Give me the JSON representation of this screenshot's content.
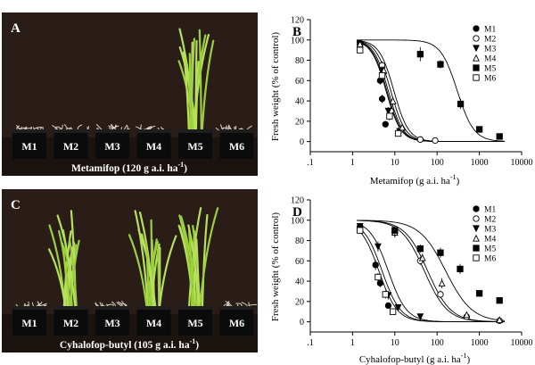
{
  "photo_panels": [
    {
      "letter": "A",
      "pots": [
        "M1",
        "M2",
        "M3",
        "M4",
        "M5",
        "M6"
      ],
      "caption_prefix": "Metamifop (120 g a.i. ha",
      "caption_sup": "-1",
      "caption_suffix": ")",
      "growth": [
        0.05,
        0.04,
        0.04,
        0.06,
        0.95,
        0.05
      ]
    },
    {
      "letter": "C",
      "pots": [
        "M1",
        "M2",
        "M3",
        "M4",
        "M5",
        "M6"
      ],
      "caption_prefix": "Cyhalofop-butyl (105 g a.i. ha",
      "caption_sup": "-1",
      "caption_suffix": ")",
      "growth": [
        0.05,
        0.85,
        0.06,
        0.85,
        0.9,
        0.1
      ]
    }
  ],
  "chart_data": [
    {
      "type": "scatter",
      "panel": "B",
      "xlabel_prefix": "Metamifop (g a.i. ha",
      "xlabel_sup": "-1",
      "xlabel_suffix": ")",
      "ylabel": "Fresh weight (% of control)",
      "xscale": "log",
      "xlim": [
        0.1,
        10000
      ],
      "ylim": [
        -10,
        120
      ],
      "xticks": [
        ".1",
        "1",
        "10",
        "100",
        "1000",
        "10000"
      ],
      "yticks": [
        0,
        20,
        40,
        60,
        80,
        100,
        120
      ],
      "legend_position": "top-right",
      "series": [
        {
          "name": "M1",
          "marker": "circle-filled",
          "ec50": 6.2,
          "slope": 2.5,
          "x": [
            1.5,
            4.5,
            5,
            6,
            12,
            40
          ],
          "y": [
            97,
            60,
            42,
            17,
            8,
            2
          ],
          "err": [
            3,
            4,
            4,
            3,
            2,
            1
          ]
        },
        {
          "name": "M2",
          "marker": "circle-open",
          "ec50": 8,
          "slope": 2.5,
          "x": [
            1.5,
            5,
            8,
            14,
            40,
            90
          ],
          "y": [
            95,
            75,
            30,
            12,
            2,
            1
          ],
          "err": [
            3,
            4,
            4,
            3,
            1,
            1
          ]
        },
        {
          "name": "M3",
          "marker": "triangle-down-filled",
          "ec50": 7,
          "slope": 2.5,
          "x": [
            1.5,
            5,
            7,
            13
          ],
          "y": [
            93,
            70,
            30,
            10
          ],
          "err": [
            3,
            4,
            4,
            3
          ]
        },
        {
          "name": "M4",
          "marker": "triangle-up-open",
          "ec50": 9.5,
          "slope": 2.5,
          "x": [
            1.5,
            5.5,
            9,
            15
          ],
          "y": [
            96,
            70,
            40,
            14
          ],
          "err": [
            3,
            4,
            4,
            3
          ]
        },
        {
          "name": "M5",
          "marker": "square-filled",
          "ec50": 300,
          "slope": 2.2,
          "x": [
            40,
            120,
            360,
            1000,
            3000
          ],
          "y": [
            86,
            76,
            37,
            12,
            5
          ],
          "err": [
            7,
            4,
            5,
            2,
            1
          ]
        },
        {
          "name": "M6",
          "marker": "square-open",
          "ec50": 6.5,
          "slope": 2.5,
          "x": [
            1.5,
            5,
            7.5,
            12
          ],
          "y": [
            90,
            65,
            25,
            8
          ],
          "err": [
            3,
            4,
            4,
            3
          ]
        }
      ]
    },
    {
      "type": "scatter",
      "panel": "D",
      "xlabel_prefix": "Cyhalofop-butyl (g a.i. ha",
      "xlabel_sup": "-1",
      "xlabel_suffix": ")",
      "ylabel": "Fresh weight (% of control)",
      "xscale": "log",
      "xlim": [
        0.1,
        10000
      ],
      "ylim": [
        -10,
        120
      ],
      "xticks": [
        ".1",
        "1",
        "10",
        "100",
        "1000",
        "10000"
      ],
      "yticks": [
        0,
        20,
        40,
        60,
        80,
        100,
        120
      ],
      "legend_position": "top-right",
      "series": [
        {
          "name": "M1",
          "marker": "circle-filled",
          "ec50": 4.2,
          "slope": 2,
          "x": [
            1.5,
            3.5,
            4.5,
            7
          ],
          "y": [
            94,
            56,
            38,
            16
          ],
          "err": [
            3,
            5,
            4,
            3
          ]
        },
        {
          "name": "M2",
          "marker": "circle-open",
          "ec50": 50,
          "slope": 1.6,
          "x": [
            10,
            40,
            120,
            500,
            3000
          ],
          "y": [
            88,
            60,
            27,
            5,
            1
          ],
          "err": [
            5,
            4,
            4,
            2,
            1
          ]
        },
        {
          "name": "M3",
          "marker": "triangle-down-filled",
          "ec50": 7,
          "slope": 2,
          "x": [
            1.5,
            4,
            7,
            12,
            40
          ],
          "y": [
            94,
            74,
            26,
            14,
            5
          ],
          "err": [
            3,
            5,
            4,
            3,
            2
          ]
        },
        {
          "name": "M4",
          "marker": "triangle-up-open",
          "ec50": 60,
          "slope": 1.6,
          "x": [
            10,
            45,
            130,
            500,
            3000
          ],
          "y": [
            88,
            63,
            38,
            7,
            2
          ],
          "err": [
            5,
            4,
            5,
            2,
            1
          ]
        },
        {
          "name": "M5",
          "marker": "square-filled",
          "ec50": 160,
          "slope": 1.4,
          "x": [
            10,
            40,
            120,
            350,
            1000,
            3000
          ],
          "y": [
            90,
            72,
            68,
            52,
            28,
            21
          ],
          "err": [
            5,
            4,
            5,
            5,
            3,
            2
          ]
        },
        {
          "name": "M6",
          "marker": "square-open",
          "ec50": 5,
          "slope": 2,
          "x": [
            1.5,
            4,
            6,
            9
          ],
          "y": [
            90,
            44,
            27,
            10
          ],
          "err": [
            3,
            4,
            4,
            3
          ]
        }
      ]
    }
  ]
}
